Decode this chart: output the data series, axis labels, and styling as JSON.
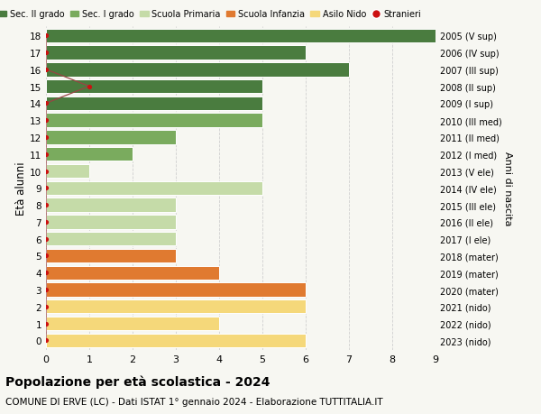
{
  "ages": [
    18,
    17,
    16,
    15,
    14,
    13,
    12,
    11,
    10,
    9,
    8,
    7,
    6,
    5,
    4,
    3,
    2,
    1,
    0
  ],
  "right_labels": [
    "2005 (V sup)",
    "2006 (IV sup)",
    "2007 (III sup)",
    "2008 (II sup)",
    "2009 (I sup)",
    "2010 (III med)",
    "2011 (II med)",
    "2012 (I med)",
    "2013 (V ele)",
    "2014 (IV ele)",
    "2015 (III ele)",
    "2016 (II ele)",
    "2017 (I ele)",
    "2018 (mater)",
    "2019 (mater)",
    "2020 (mater)",
    "2021 (nido)",
    "2022 (nido)",
    "2023 (nido)"
  ],
  "values": [
    9,
    6,
    7,
    5,
    5,
    5,
    3,
    2,
    1,
    5,
    3,
    3,
    3,
    3,
    4,
    6,
    6,
    4,
    6
  ],
  "bar_colors": [
    "#4a7c3f",
    "#4a7c3f",
    "#4a7c3f",
    "#4a7c3f",
    "#4a7c3f",
    "#7aab5e",
    "#7aab5e",
    "#7aab5e",
    "#c5dba8",
    "#c5dba8",
    "#c5dba8",
    "#c5dba8",
    "#c5dba8",
    "#e07a30",
    "#e07a30",
    "#e07a30",
    "#f5d87a",
    "#f5d87a",
    "#f5d87a"
  ],
  "stranieri_y": [
    18,
    17,
    16,
    15,
    14,
    13,
    12,
    11,
    10,
    9,
    8,
    7,
    6,
    5,
    4,
    3,
    2,
    1,
    0
  ],
  "stranieri_x": [
    0,
    0,
    0,
    1,
    0,
    0,
    0,
    0,
    0,
    0,
    0,
    0,
    0,
    0,
    0,
    0,
    0,
    0,
    0
  ],
  "legend_labels": [
    "Sec. II grado",
    "Sec. I grado",
    "Scuola Primaria",
    "Scuola Infanzia",
    "Asilo Nido",
    "Stranieri"
  ],
  "legend_colors": [
    "#4a7c3f",
    "#7aab5e",
    "#c5dba8",
    "#e07a30",
    "#f5d87a",
    "#cc1111"
  ],
  "title": "Popolazione per età scolastica - 2024",
  "subtitle": "COMUNE DI ERVE (LC) - Dati ISTAT 1° gennaio 2024 - Elaborazione TUTTITALIA.IT",
  "ylabel": "Età alunni",
  "right_ylabel": "Anni di nascita",
  "bg_color": "#f7f7f2",
  "grid_color": "#d0d0d0",
  "bar_height": 0.82,
  "dot_color": "#cc1111",
  "line_color": "#994444"
}
